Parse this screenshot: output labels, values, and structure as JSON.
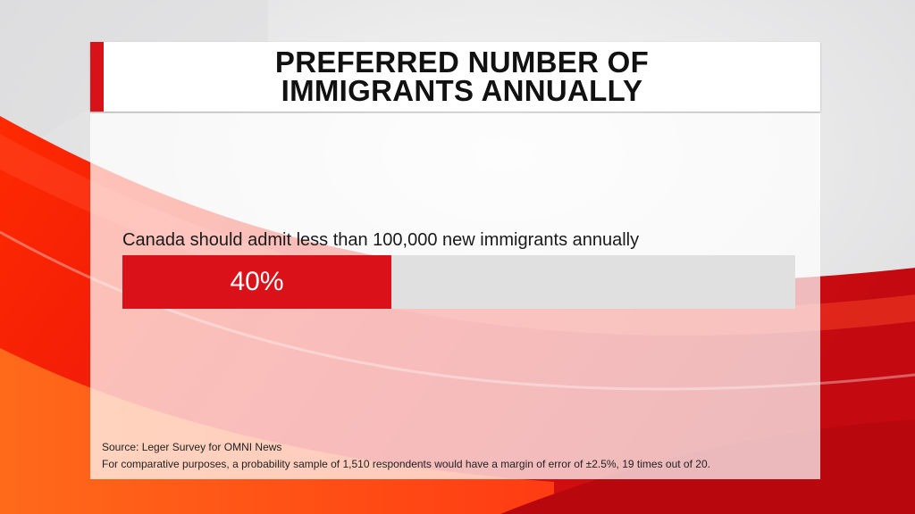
{
  "title": "PREFERRED NUMBER OF\nIMMIGRANTS ANNUALLY",
  "colors": {
    "accent": "#d81219",
    "bar_fill": "#da1118",
    "bar_track": "#e0e0e0"
  },
  "chart_data": {
    "type": "bar",
    "orientation": "horizontal",
    "categories": [
      "Canada should admit less than 100,000 new immigrants annually"
    ],
    "values": [
      40
    ],
    "value_labels": [
      "40%"
    ],
    "xlim": [
      0,
      100
    ],
    "unit": "%",
    "grid": false
  },
  "footer": {
    "source": "Source: Leger Survey for OMNI News",
    "note": "For comparative purposes, a probability sample of 1,510 respondents would have a margin of error of ±2.5%, 19 times out of 20."
  }
}
